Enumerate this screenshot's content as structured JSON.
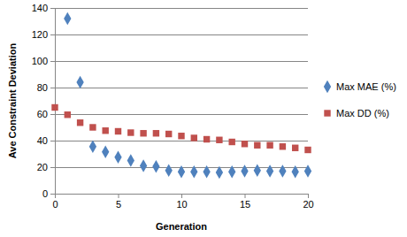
{
  "chart_data": {
    "type": "scatter",
    "x_label": "Generation",
    "y_label": "Ave Constraint Deviation",
    "x": [
      0,
      1,
      2,
      3,
      4,
      5,
      6,
      7,
      8,
      9,
      10,
      11,
      12,
      13,
      14,
      15,
      16,
      17,
      18,
      19,
      20
    ],
    "series": [
      {
        "name": "Max MAE (%)",
        "color": "#4f81bd",
        "marker": "diamond",
        "values": [
          null,
          132,
          84,
          35.5,
          31.5,
          27.5,
          25,
          21,
          20.5,
          17.5,
          16.5,
          16.5,
          16.5,
          16,
          16.5,
          17,
          17.5,
          17,
          17,
          16.5,
          17
        ]
      },
      {
        "name": "Max DD (%)",
        "color": "#c0504d",
        "marker": "square",
        "values": [
          65,
          59.5,
          53.5,
          50,
          47.5,
          47,
          46,
          45.5,
          45.5,
          45,
          43.5,
          42,
          41,
          40.5,
          39,
          37.5,
          36.5,
          36.5,
          35.5,
          34.5,
          33
        ]
      }
    ],
    "xlim": [
      0,
      20
    ],
    "xticks": [
      0,
      5,
      10,
      15,
      20
    ],
    "ylim": [
      0,
      140
    ],
    "yticks": [
      0,
      20,
      40,
      60,
      80,
      100,
      120,
      140
    ],
    "grid": true,
    "legend": "right"
  }
}
